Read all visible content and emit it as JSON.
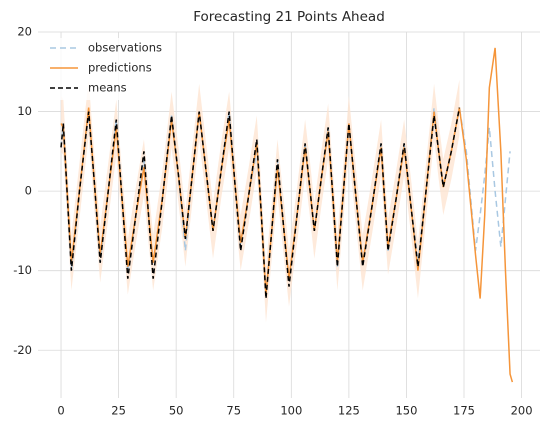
{
  "chart_data": {
    "type": "line",
    "title": "Forecasting 21 Points Ahead",
    "x": [
      0,
      1,
      4.5,
      8,
      12,
      14.5,
      17,
      20.5,
      24,
      26.5,
      29,
      32.5,
      36,
      38,
      40,
      44,
      48,
      51,
      54,
      57,
      60,
      63,
      66,
      69.5,
      73,
      75.5,
      78,
      81.5,
      85,
      87,
      89,
      91.5,
      94,
      96.5,
      99,
      102.5,
      106,
      108,
      110,
      113,
      116,
      118,
      120,
      122.5,
      125,
      128,
      131,
      135,
      139,
      140.5,
      142,
      145.5,
      149,
      152,
      155,
      158.5,
      162,
      164,
      166,
      169.5,
      173,
      176,
      180,
      182,
      184,
      186,
      188.5,
      191,
      193,
      195,
      196
    ],
    "series": [
      {
        "name": "observations",
        "color": "#a9c8e2",
        "dash": "6,4",
        "values": [
          5.5,
          8.5,
          -10,
          0,
          10,
          1,
          -9,
          0,
          9,
          -1,
          -10,
          -3,
          4,
          -3,
          -9,
          -1,
          9.5,
          2,
          -7.5,
          2,
          10,
          2.5,
          -5,
          2.5,
          10,
          1,
          -7,
          -0.5,
          5,
          -3,
          -13,
          -5,
          4,
          -4,
          -11,
          -3,
          6,
          0.5,
          -5,
          1.5,
          8,
          -0.5,
          -9.5,
          -0.5,
          8.5,
          -0.5,
          -9,
          -2,
          6,
          -1,
          -7.5,
          -1,
          6,
          -2,
          -9,
          0,
          10.5,
          5,
          0.5,
          5,
          10.5,
          5,
          -7.5,
          -3,
          2,
          8,
          0,
          -7,
          -1,
          5,
          null
        ]
      },
      {
        "name": "predictions",
        "color": "#f5953a",
        "dash": "",
        "values": [
          8.5,
          8,
          -9,
          0,
          10.5,
          1,
          -8,
          0,
          8,
          -1,
          -9.5,
          -3,
          3,
          -3,
          -9,
          -1,
          9,
          2,
          -6,
          2,
          10,
          2.5,
          -5,
          2.5,
          9,
          1,
          -6.5,
          -0.5,
          6,
          -3,
          -13,
          -5,
          3,
          -4,
          -11,
          -3,
          5.5,
          0.5,
          -5,
          1.5,
          7.5,
          -0.5,
          -9,
          -0.5,
          8.5,
          -0.5,
          -9,
          -2,
          5.5,
          -1,
          -7,
          -1,
          5.5,
          -2,
          -10,
          0,
          10,
          5,
          0.5,
          5,
          10.5,
          4,
          -8,
          -13.5,
          -3,
          13,
          18,
          5,
          -10,
          -23,
          -24
        ]
      },
      {
        "name": "means",
        "color": "#000000",
        "dash": "5,3",
        "values": [
          5.5,
          8.5,
          -10,
          0,
          10,
          1,
          -9,
          0,
          9,
          -1,
          -11,
          -3,
          5,
          -3,
          -11,
          -1,
          9.5,
          2,
          -6,
          2,
          10,
          2.5,
          -5,
          2.5,
          10,
          1,
          -7.5,
          -0.5,
          6.5,
          -3,
          -13.5,
          -5,
          4,
          -4,
          -12,
          -3,
          6,
          0.5,
          -5,
          1.5,
          8,
          -0.5,
          -9.5,
          -0.5,
          8.5,
          -0.5,
          -9.5,
          -2,
          6,
          -1,
          -7.5,
          -1,
          6,
          -2,
          -9.5,
          0,
          9.5,
          5,
          0.5,
          5,
          10.5,
          null,
          null,
          null,
          null,
          null,
          null,
          null,
          null,
          null,
          null
        ]
      }
    ],
    "band": {
      "color": "#fde3cf",
      "upper": [
        12,
        11.5,
        -5.5,
        3.5,
        14,
        4.5,
        -4.5,
        3.5,
        11.5,
        2.5,
        -6,
        0.5,
        6.5,
        0.5,
        -5.5,
        2.5,
        12.5,
        5.5,
        -2.5,
        5.5,
        13.5,
        6,
        -1.5,
        6,
        12.5,
        4.5,
        -3,
        3,
        9.5,
        0.5,
        -9.5,
        -1.5,
        6.5,
        -0.5,
        -7.5,
        0.5,
        9,
        4,
        -1.5,
        5,
        11,
        3,
        -5.5,
        3,
        12,
        3,
        -5.5,
        1.5,
        9,
        2.5,
        -3.5,
        2.5,
        9,
        1.5,
        -6.5,
        3.5,
        13.5,
        8.5,
        4,
        8.5,
        14,
        null,
        null,
        null,
        null,
        null,
        null,
        null,
        null,
        null,
        null
      ],
      "lower": [
        5,
        4.5,
        -12.5,
        -3.5,
        7,
        -2.5,
        -11.5,
        -3.5,
        4.5,
        -4.5,
        -13,
        -6.5,
        -0.5,
        -6.5,
        -12.5,
        -4.5,
        5.5,
        -1.5,
        -9.5,
        -1.5,
        6.5,
        -1,
        -8.5,
        -1,
        5.5,
        -2.5,
        -10,
        -4,
        2.5,
        -6.5,
        -16.5,
        -8.5,
        -0.5,
        -7.5,
        -14.5,
        -6.5,
        2,
        -3,
        -8.5,
        -2,
        4,
        -4,
        -12.5,
        -4,
        5,
        -4,
        -12.5,
        -5.5,
        2,
        -4.5,
        -10.5,
        -4.5,
        2,
        -5.5,
        -13.5,
        -3.5,
        6.5,
        1.5,
        -3,
        1.5,
        7,
        null,
        null,
        null,
        null,
        null,
        null,
        null,
        null,
        null,
        null
      ]
    },
    "xlim": [
      -10,
      208
    ],
    "ylim": [
      -26,
      20
    ],
    "xticks": [
      0,
      25,
      50,
      75,
      100,
      125,
      150,
      175,
      200
    ],
    "yticks": [
      -20,
      -10,
      0,
      10,
      20
    ],
    "grid": true,
    "legend": "upper left"
  }
}
